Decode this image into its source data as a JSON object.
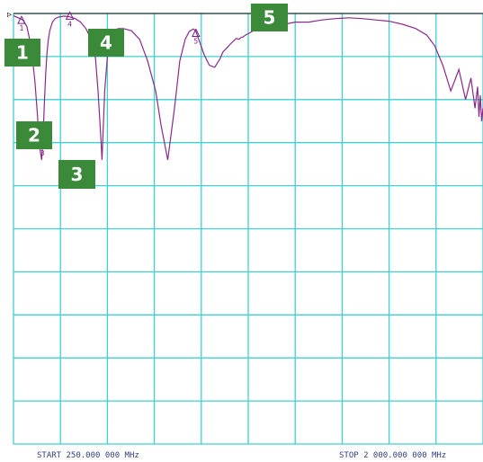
{
  "chart_data": {
    "type": "line",
    "title": "",
    "xlabel": "",
    "ylabel": "",
    "x_start_label": "START  250.000 000 MHz",
    "x_stop_label": "STOP 2 000.000 000 MHz",
    "xlim": [
      250,
      2000
    ],
    "ylim": [
      -10,
      0
    ],
    "grid": true,
    "grid_divisions": {
      "x": 10,
      "y": 10
    },
    "series": [
      {
        "color": "#8a2a8a",
        "x": [
          250,
          268,
          285,
          300,
          310,
          320,
          330,
          340,
          343,
          346,
          350,
          355,
          360,
          365,
          370,
          375,
          380,
          385,
          395,
          405,
          420,
          440,
          460,
          480,
          500,
          520,
          540,
          555,
          565,
          575,
          580,
          590,
          600,
          608,
          615,
          620,
          623,
          626,
          630,
          640,
          660,
          690,
          720,
          750,
          780,
          800,
          825,
          850,
          870,
          890,
          905,
          915,
          920,
          925,
          930,
          935,
          945,
          960,
          980,
          1000,
          1020,
          1030,
          1045,
          1060,
          1080,
          1090,
          1100,
          1105,
          1115,
          1130,
          1150,
          1175,
          1190,
          1210,
          1230,
          1260,
          1300,
          1350,
          1400,
          1450,
          1500,
          1550,
          1600,
          1650,
          1700,
          1750,
          1790,
          1820,
          1850,
          1880,
          1910,
          1935,
          1955,
          1970,
          1980,
          1985,
          1990,
          1995,
          2000
        ],
        "y": [
          -0.05,
          -0.1,
          -0.15,
          -0.3,
          -0.6,
          -1.0,
          -1.6,
          -2.4,
          -2.8,
          -3.0,
          -3.2,
          -3.4,
          -2.9,
          -2.1,
          -1.4,
          -0.9,
          -0.6,
          -0.4,
          -0.2,
          -0.12,
          -0.08,
          -0.06,
          -0.08,
          -0.12,
          -0.2,
          -0.35,
          -0.6,
          -1.0,
          -1.8,
          -2.8,
          -3.4,
          -1.8,
          -1.0,
          -0.6,
          -0.45,
          -0.4,
          -0.38,
          -0.38,
          -0.38,
          -0.35,
          -0.35,
          -0.4,
          -0.6,
          -1.1,
          -1.8,
          -2.6,
          -3.4,
          -2.2,
          -1.1,
          -0.6,
          -0.42,
          -0.38,
          -0.36,
          -0.38,
          -0.42,
          -0.5,
          -0.68,
          -0.95,
          -1.2,
          -1.25,
          -1.05,
          -0.9,
          -0.8,
          -0.7,
          -0.58,
          -0.6,
          -0.55,
          -0.55,
          -0.5,
          -0.45,
          -0.38,
          -0.32,
          -0.3,
          -0.35,
          -0.3,
          -0.25,
          -0.2,
          -0.2,
          -0.15,
          -0.12,
          -0.1,
          -0.12,
          -0.15,
          -0.18,
          -0.25,
          -0.35,
          -0.5,
          -0.75,
          -1.2,
          -1.8,
          -1.3,
          -2.0,
          -1.5,
          -2.2,
          -1.7,
          -2.4,
          -1.9,
          -2.5,
          -2.2
        ]
      }
    ],
    "markers": [
      {
        "label": "1",
        "x": 280,
        "y": -0.15
      },
      {
        "label": "2",
        "x": 350,
        "y": -2.65
      },
      {
        "label": "3",
        "x": 358,
        "y": -3.05
      },
      {
        "label": "4",
        "x": 460,
        "y": -0.05
      },
      {
        "label": "5",
        "x": 930,
        "y": -0.45
      }
    ],
    "badges": [
      "1",
      "2",
      "3",
      "4",
      "5"
    ],
    "reference_marker": "▹"
  }
}
